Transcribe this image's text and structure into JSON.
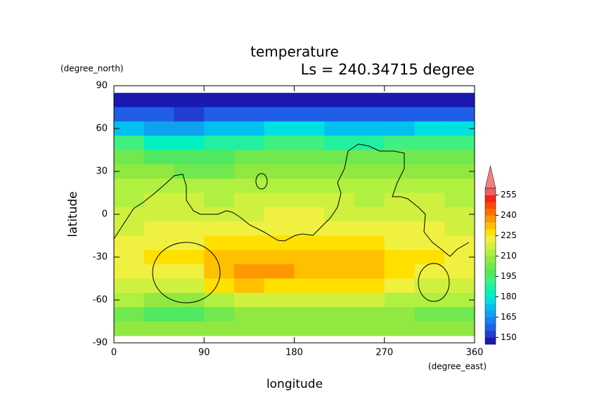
{
  "chart_data": {
    "type": "heatmap",
    "title": "temperature",
    "subtitle": "Ls = 240.34715 degree",
    "x_label": "longitude",
    "x_unit": "(degree_east)",
    "y_label": "latitude",
    "y_unit": "(degree_north)",
    "xlim": [
      0,
      360
    ],
    "ylim": [
      -90,
      90
    ],
    "xticks": [
      0,
      90,
      180,
      270,
      360
    ],
    "yticks": [
      -90,
      -60,
      -30,
      0,
      30,
      60,
      90
    ],
    "x": [
      15,
      45,
      75,
      105,
      135,
      165,
      195,
      225,
      255,
      285,
      315,
      345
    ],
    "y": [
      80,
      70,
      60,
      50,
      40,
      30,
      20,
      10,
      0,
      -10,
      -20,
      -30,
      -40,
      -50,
      -60,
      -70,
      -80
    ],
    "values": [
      [
        148,
        149,
        149,
        148,
        148,
        148,
        147,
        147,
        148,
        148,
        148,
        148
      ],
      [
        158,
        155,
        154,
        156,
        158,
        158,
        156,
        156,
        157,
        158,
        158,
        158
      ],
      [
        174,
        168,
        166,
        170,
        174,
        176,
        175,
        173,
        172,
        174,
        175,
        175
      ],
      [
        190,
        184,
        182,
        186,
        189,
        190,
        190,
        188,
        188,
        190,
        190,
        190
      ],
      [
        200,
        198,
        196,
        198,
        200,
        202,
        201,
        200,
        200,
        201,
        200,
        200
      ],
      [
        206,
        205,
        204,
        204,
        205,
        206,
        206,
        205,
        205,
        206,
        206,
        206
      ],
      [
        211,
        213,
        212,
        210,
        211,
        212,
        212,
        211,
        211,
        211,
        211,
        211
      ],
      [
        214,
        216,
        215,
        214,
        215,
        216,
        216,
        215,
        214,
        215,
        215,
        214
      ],
      [
        217,
        218,
        218,
        218,
        219,
        220,
        220,
        219,
        218,
        218,
        218,
        217
      ],
      [
        219,
        220,
        220,
        222,
        223,
        224,
        223,
        222,
        221,
        221,
        220,
        219
      ],
      [
        221,
        222,
        223,
        226,
        228,
        228,
        227,
        226,
        227,
        224,
        222,
        221
      ],
      [
        224,
        225,
        226,
        230,
        231,
        231,
        230,
        231,
        231,
        229,
        226,
        224
      ],
      [
        222,
        223,
        224,
        230,
        236,
        235,
        232,
        230,
        230,
        227,
        224,
        222
      ],
      [
        218,
        216,
        218,
        228,
        230,
        229,
        228,
        228,
        227,
        222,
        219,
        218
      ],
      [
        211,
        207,
        206,
        214,
        218,
        217,
        216,
        216,
        216,
        213,
        212,
        211
      ],
      [
        203,
        198,
        197,
        203,
        207,
        208,
        206,
        206,
        206,
        205,
        204,
        203
      ],
      [
        206,
        205,
        205,
        206,
        207,
        207,
        207,
        207,
        207,
        207,
        207,
        206
      ]
    ],
    "levels": [
      145,
      150,
      155,
      160,
      165,
      170,
      175,
      180,
      185,
      190,
      195,
      200,
      205,
      210,
      215,
      220,
      225,
      230,
      235,
      240,
      245,
      250,
      255,
      260
    ],
    "colors": [
      "#1a1ab0",
      "#1e3fd0",
      "#1f5fe8",
      "#1880f0",
      "#10a0f0",
      "#00c0f0",
      "#00e0e0",
      "#00f0c0",
      "#20f0a0",
      "#40f080",
      "#50e860",
      "#70e850",
      "#90e840",
      "#b0f040",
      "#d0f040",
      "#f0f040",
      "#ffe000",
      "#ffc000",
      "#ff9800",
      "#ff7000",
      "#ff4800",
      "#f82020",
      "#f06060"
    ],
    "colorbar_ticks": [
      150,
      165,
      180,
      195,
      210,
      225,
      240,
      255
    ]
  }
}
